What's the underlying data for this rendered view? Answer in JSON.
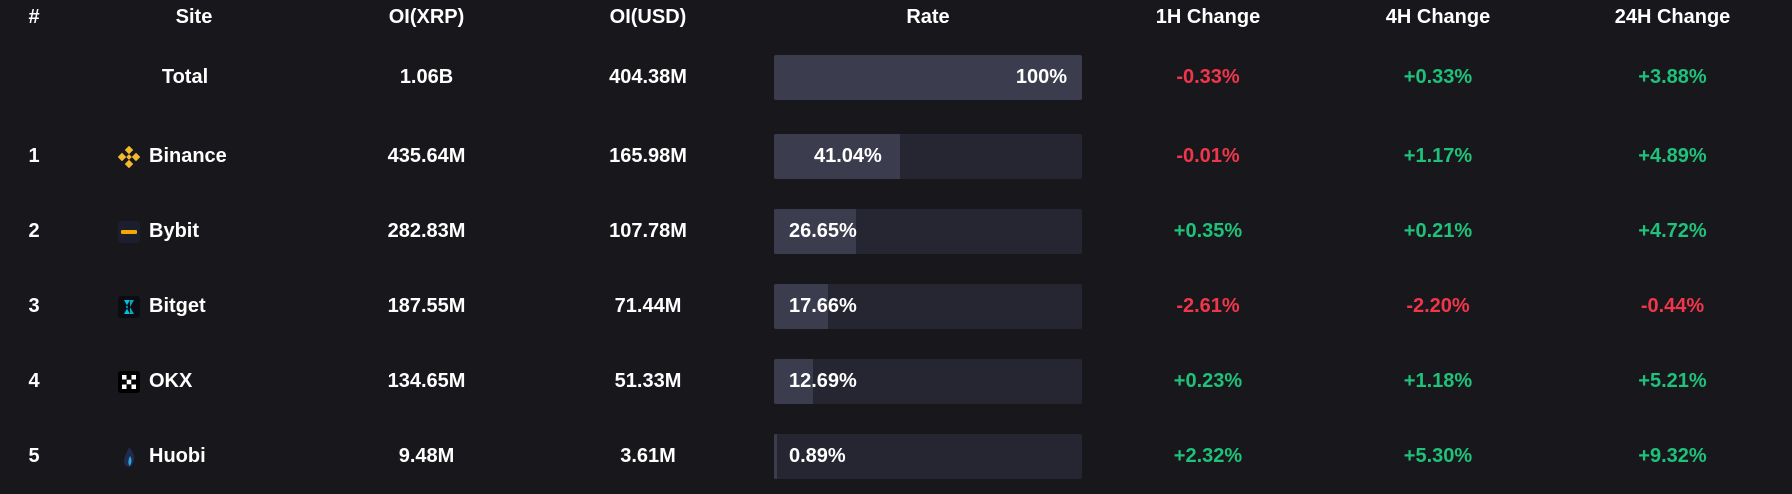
{
  "colors": {
    "background": "#18181c",
    "positive": "#1ec27a",
    "negative": "#f0364a",
    "bar_track": "#262633",
    "bar_fill": "#3b3c4d"
  },
  "headers": {
    "rank": "#",
    "site": "Site",
    "oi_xrp": "OI(XRP)",
    "oi_usd": "OI(USD)",
    "rate": "Rate",
    "change_1h": "1H Change",
    "change_4h": "4H Change",
    "change_24h": "24H Change"
  },
  "total": {
    "site": "Total",
    "oi_xrp": "1.06B",
    "oi_usd": "404.38M",
    "rate": "100%",
    "rate_fraction": 1.0,
    "change_1h": "-0.33%",
    "change_4h": "+0.33%",
    "change_24h": "+3.88%"
  },
  "rows": [
    {
      "rank": "1",
      "site": "Binance",
      "icon": "binance-logo-icon",
      "oi_xrp": "435.64M",
      "oi_usd": "165.98M",
      "rate": "41.04%",
      "rate_fraction": 0.4104,
      "change_1h": "-0.01%",
      "change_4h": "+1.17%",
      "change_24h": "+4.89%"
    },
    {
      "rank": "2",
      "site": "Bybit",
      "icon": "bybit-logo-icon",
      "oi_xrp": "282.83M",
      "oi_usd": "107.78M",
      "rate": "26.65%",
      "rate_fraction": 0.2665,
      "change_1h": "+0.35%",
      "change_4h": "+0.21%",
      "change_24h": "+4.72%"
    },
    {
      "rank": "3",
      "site": "Bitget",
      "icon": "bitget-logo-icon",
      "oi_xrp": "187.55M",
      "oi_usd": "71.44M",
      "rate": "17.66%",
      "rate_fraction": 0.1766,
      "change_1h": "-2.61%",
      "change_4h": "-2.20%",
      "change_24h": "-0.44%"
    },
    {
      "rank": "4",
      "site": "OKX",
      "icon": "okx-logo-icon",
      "oi_xrp": "134.65M",
      "oi_usd": "51.33M",
      "rate": "12.69%",
      "rate_fraction": 0.1269,
      "change_1h": "+0.23%",
      "change_4h": "+1.18%",
      "change_24h": "+5.21%"
    },
    {
      "rank": "5",
      "site": "Huobi",
      "icon": "huobi-logo-icon",
      "oi_xrp": "9.48M",
      "oi_usd": "3.61M",
      "rate": "0.89%",
      "rate_fraction": 0.0089,
      "change_1h": "+2.32%",
      "change_4h": "+5.30%",
      "change_24h": "+9.32%"
    }
  ]
}
